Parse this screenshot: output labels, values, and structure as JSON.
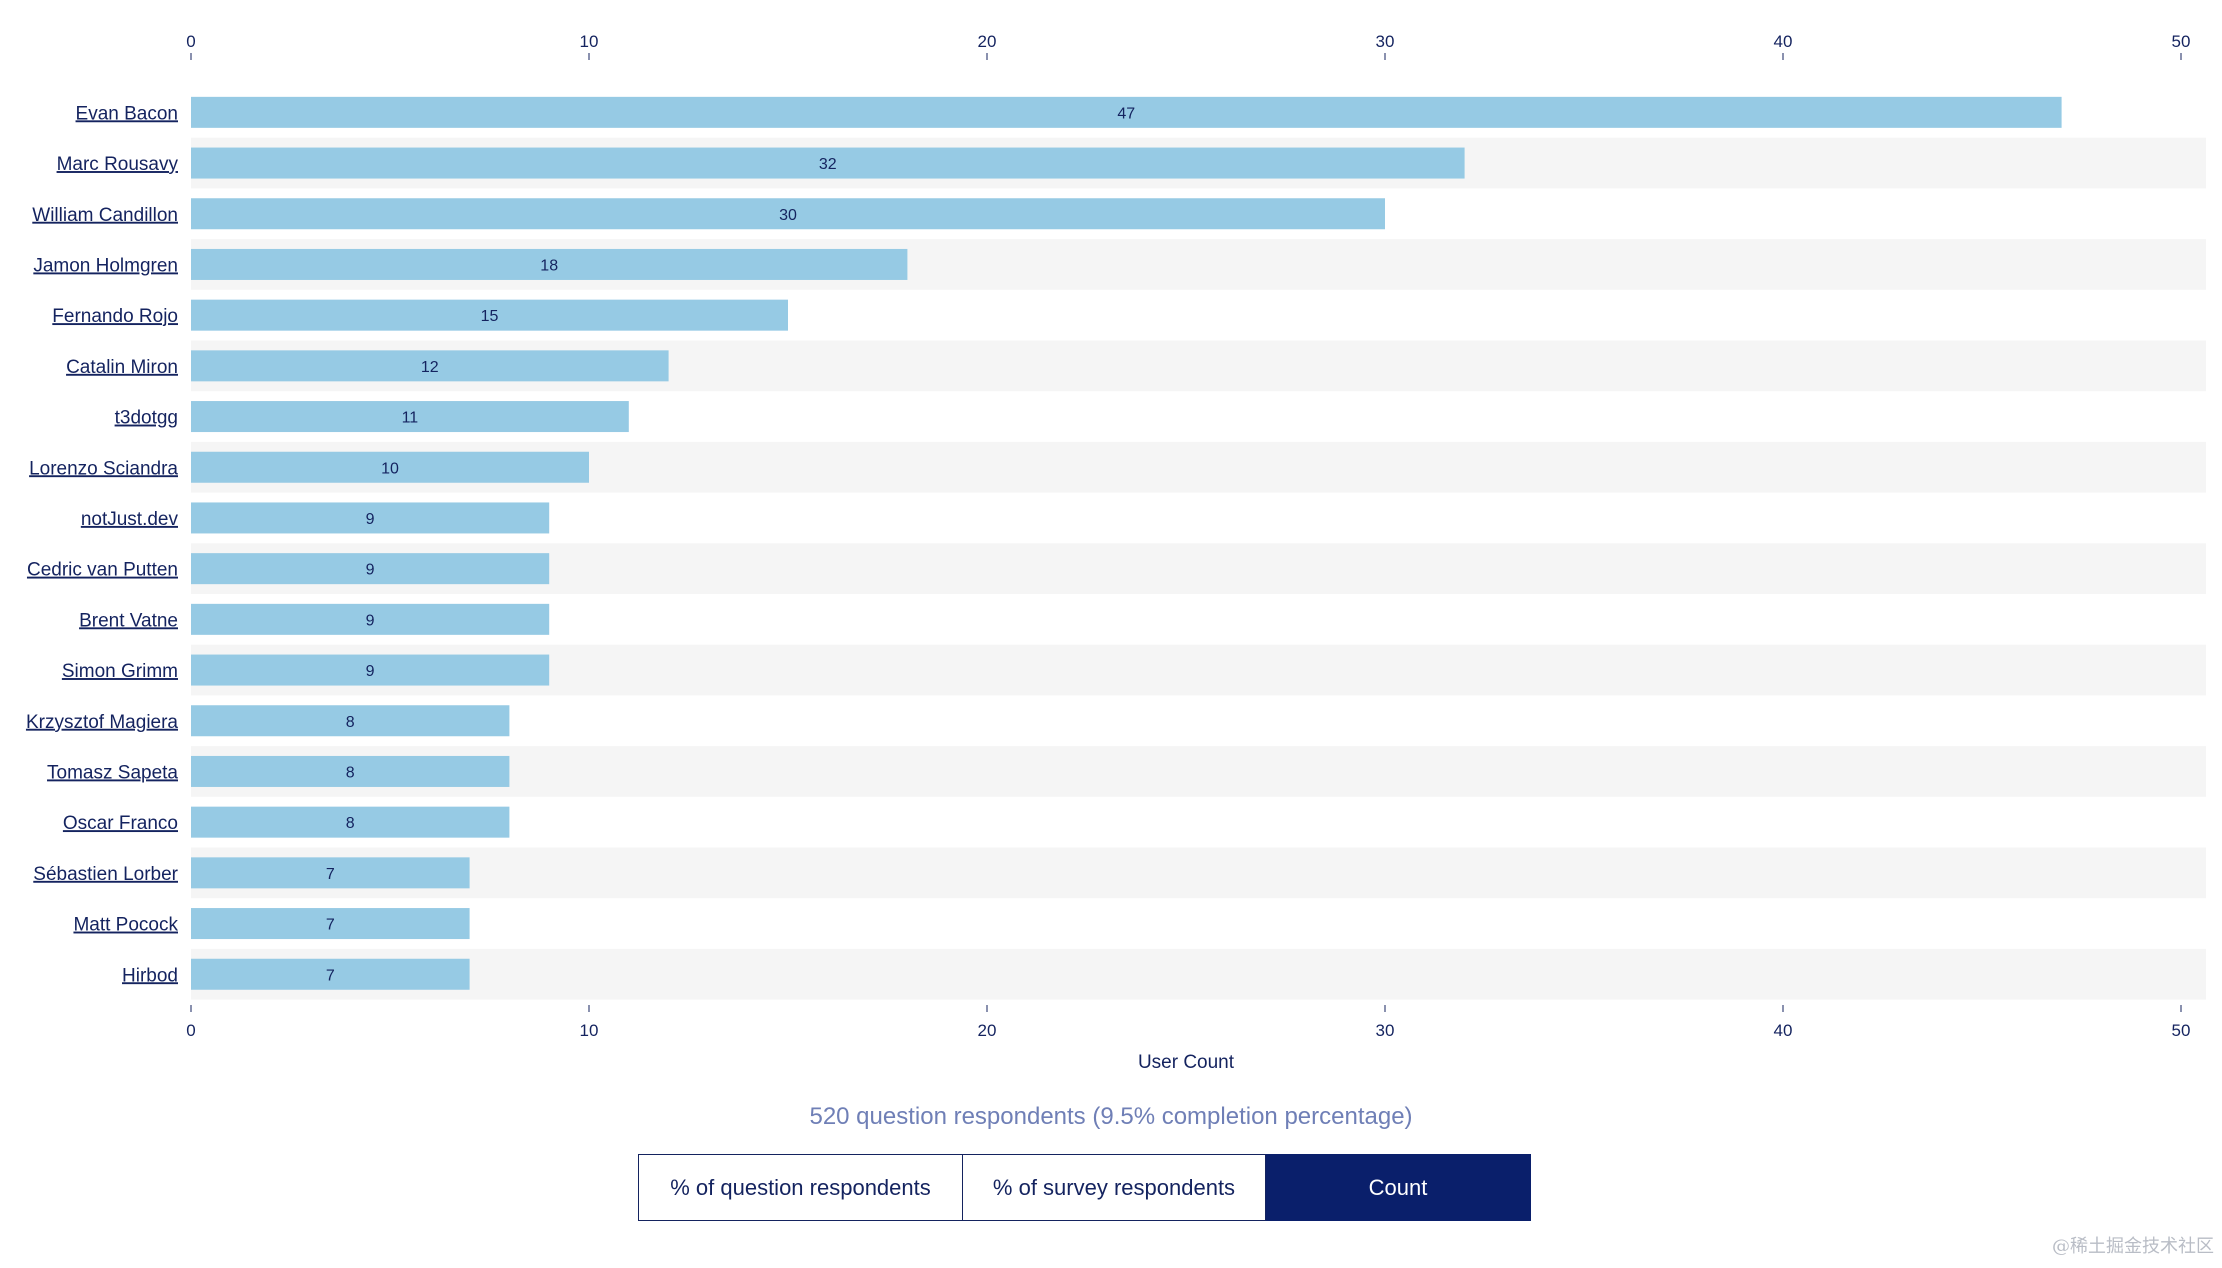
{
  "chart_data": {
    "type": "bar",
    "orientation": "horizontal",
    "categories": [
      "Evan Bacon",
      "Marc Rousavy",
      "William Candillon",
      "Jamon Holmgren",
      "Fernando Rojo",
      "Catalin Miron",
      "t3dotgg",
      "Lorenzo Sciandra",
      "notJust.dev",
      "Cedric van Putten",
      "Brent Vatne",
      "Simon Grimm",
      "Krzysztof Magiera",
      "Tomasz Sapeta",
      "Oscar Franco",
      "Sébastien Lorber",
      "Matt Pocock",
      "Hirbod"
    ],
    "values": [
      47,
      32,
      30,
      18,
      15,
      12,
      11,
      10,
      9,
      9,
      9,
      9,
      8,
      8,
      8,
      7,
      7,
      7
    ],
    "xlabel": "User Count",
    "xlim": [
      0,
      50
    ],
    "xticks": [
      0,
      10,
      20,
      30,
      40,
      50
    ],
    "grid": false,
    "bar_color": "#96cae4",
    "alt_row_color": "#f5f5f5"
  },
  "summary": "520 question respondents (9.5% completion percentage)",
  "toggle": {
    "pct_question_label": "% of question respondents",
    "pct_survey_label": "% of survey respondents",
    "count_label": "Count",
    "active": "Count"
  },
  "watermark": "@稀土掘金技术社区"
}
